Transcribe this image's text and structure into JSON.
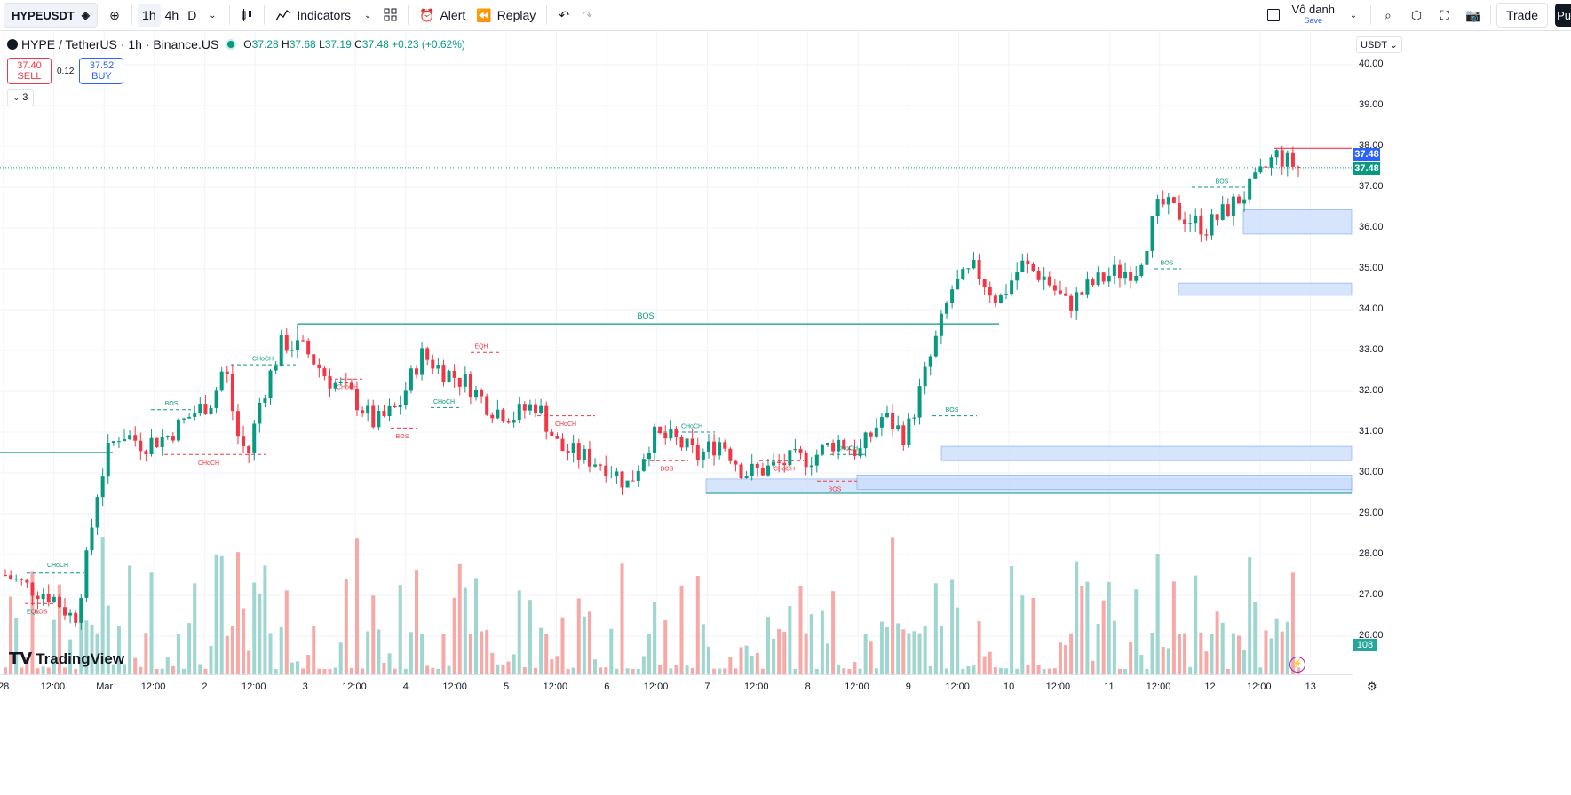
{
  "toolbar": {
    "symbol": "HYPEUSDT",
    "timeframes": [
      "1h",
      "4h",
      "D"
    ],
    "indicators_label": "Indicators",
    "alert_label": "Alert",
    "replay_label": "Replay",
    "layout_name": "Vô danh",
    "save_label": "Save",
    "trade_label": "Trade",
    "publish_label": "Pu"
  },
  "legend": {
    "title": "HYPE / TetherUS · 1h · Binance.US",
    "open_key": "O",
    "open": "37.28",
    "high_key": "H",
    "high": "37.68",
    "low_key": "L",
    "low": "37.19",
    "close_key": "C",
    "close": "37.48",
    "change": "+0.23 (+0.62%)"
  },
  "trade": {
    "sell_price": "37.40",
    "sell_label": "SELL",
    "spread": "0.12",
    "buy_price": "37.52",
    "buy_label": "BUY",
    "collapse_count": "3"
  },
  "price_axis": {
    "currency": "USDT",
    "ticks": [
      "40.00",
      "39.00",
      "38.00",
      "37.00",
      "36.00",
      "35.00",
      "34.00",
      "33.00",
      "32.00",
      "31.00",
      "30.00",
      "29.00",
      "28.00",
      "27.00",
      "26.00"
    ],
    "last_price": "37.48",
    "last_price_2": "37.48",
    "volume_label": "108"
  },
  "time_axis": {
    "labels": [
      "28",
      "12:00",
      "Mar",
      "12:00",
      "2",
      "12:00",
      "3",
      "12:00",
      "4",
      "12:00",
      "5",
      "12:00",
      "6",
      "12:00",
      "7",
      "12:00",
      "8",
      "12:00",
      "9",
      "12:00",
      "10",
      "12:00",
      "11",
      "12:00",
      "12",
      "12:00",
      "13"
    ]
  },
  "annotations": {
    "bos": "BOS",
    "choch": "CHoCH",
    "eqh": "EQH",
    "eql": "EQL"
  },
  "watermark": "TradingView",
  "colors": {
    "up": "#089981",
    "down": "#f23645",
    "up_volume": "#9fd6cf",
    "down_volume": "#f7a9a7",
    "zone": "#c9dcfb",
    "accent": "#2962ff"
  },
  "chart_data": {
    "type": "candlestick",
    "ylim": [
      25.5,
      40.5
    ],
    "close_path": [
      [
        0,
        27.5
      ],
      [
        1,
        27.2
      ],
      [
        2,
        27.0
      ],
      [
        3,
        26.4
      ],
      [
        3.5,
        27.8
      ],
      [
        4,
        29.6
      ],
      [
        4.5,
        30.6
      ],
      [
        5,
        31.0
      ],
      [
        6,
        30.7
      ],
      [
        7,
        30.9
      ],
      [
        8,
        31.4
      ],
      [
        9,
        31.8
      ],
      [
        9.5,
        32.7
      ],
      [
        10,
        31.0
      ],
      [
        10.5,
        30.4
      ],
      [
        11,
        31.7
      ],
      [
        12,
        33.2
      ],
      [
        13,
        33.0
      ],
      [
        14,
        32.3
      ],
      [
        15,
        31.9
      ],
      [
        16,
        31.2
      ],
      [
        17,
        31.6
      ],
      [
        18,
        32.9
      ],
      [
        19,
        32.5
      ],
      [
        20,
        32.2
      ],
      [
        21,
        31.6
      ],
      [
        22,
        31.4
      ],
      [
        23,
        31.7
      ],
      [
        24,
        30.6
      ],
      [
        25,
        30.4
      ],
      [
        26,
        30.2
      ],
      [
        27,
        29.7
      ],
      [
        28,
        30.9
      ],
      [
        29,
        30.8
      ],
      [
        30,
        30.4
      ],
      [
        31,
        30.8
      ],
      [
        32,
        30.0
      ],
      [
        33,
        30.1
      ],
      [
        34,
        30.3
      ],
      [
        35,
        30.4
      ],
      [
        36,
        30.8
      ],
      [
        37,
        30.5
      ],
      [
        38,
        31.4
      ],
      [
        39,
        30.9
      ],
      [
        40,
        32.7
      ],
      [
        41,
        34.5
      ],
      [
        42,
        35.0
      ],
      [
        43,
        34.2
      ],
      [
        44,
        35.1
      ],
      [
        45,
        34.8
      ],
      [
        46,
        34.1
      ],
      [
        47,
        34.6
      ],
      [
        48,
        34.9
      ],
      [
        49,
        35.0
      ],
      [
        50,
        36.6
      ],
      [
        51,
        36.3
      ],
      [
        52,
        36.0
      ],
      [
        53,
        36.5
      ],
      [
        54,
        37.0
      ],
      [
        55,
        37.8
      ],
      [
        56,
        37.48
      ]
    ],
    "volume_max_label": "108"
  }
}
